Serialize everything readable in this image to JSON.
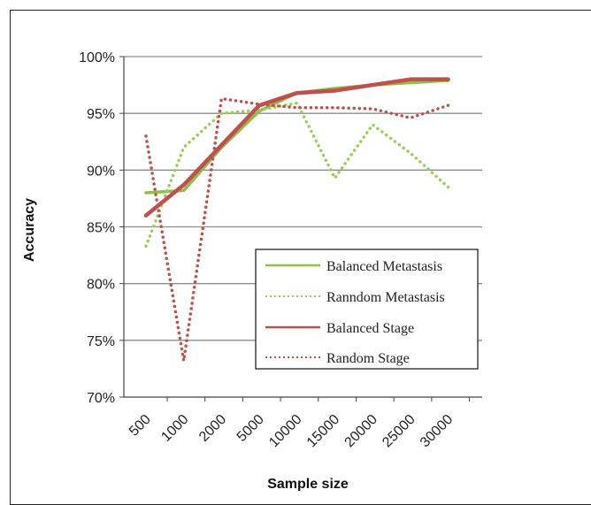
{
  "chart_data": {
    "type": "line",
    "categories": [
      "500",
      "1000",
      "2000",
      "5000",
      "10000",
      "15000",
      "20000",
      "25000",
      "30000"
    ],
    "series": [
      {
        "name": "Balanced Metastasis",
        "values": [
          88.0,
          88.2,
          92.0,
          95.2,
          96.8,
          97.2,
          97.5,
          97.7,
          97.9
        ],
        "color": "#8fbf4a",
        "style": "solid"
      },
      {
        "name": "Ranndom Metastasis",
        "values": [
          83.3,
          92.0,
          95.0,
          95.3,
          95.9,
          89.3,
          94.0,
          91.5,
          88.5
        ],
        "color": "#9acd5a",
        "style": "dotted"
      },
      {
        "name": "Balanced Stage",
        "values": [
          86.0,
          88.7,
          92.2,
          95.7,
          96.8,
          97.0,
          97.5,
          98.0,
          98.0
        ],
        "color": "#c0504d",
        "style": "solid"
      },
      {
        "name": "Random Stage",
        "values": [
          93.0,
          73.2,
          96.3,
          95.8,
          95.5,
          95.5,
          95.4,
          94.6,
          95.7
        ],
        "color": "#c0504d",
        "style": "dotted"
      }
    ],
    "yticks": [
      "100%",
      "95%",
      "90%",
      "85%",
      "80%",
      "75%",
      "70%"
    ],
    "ylim": [
      70,
      100
    ],
    "xlabel": "Sample size",
    "ylabel": "Accuracy",
    "grid": "horizontal",
    "legend_position": "bottom-right"
  }
}
